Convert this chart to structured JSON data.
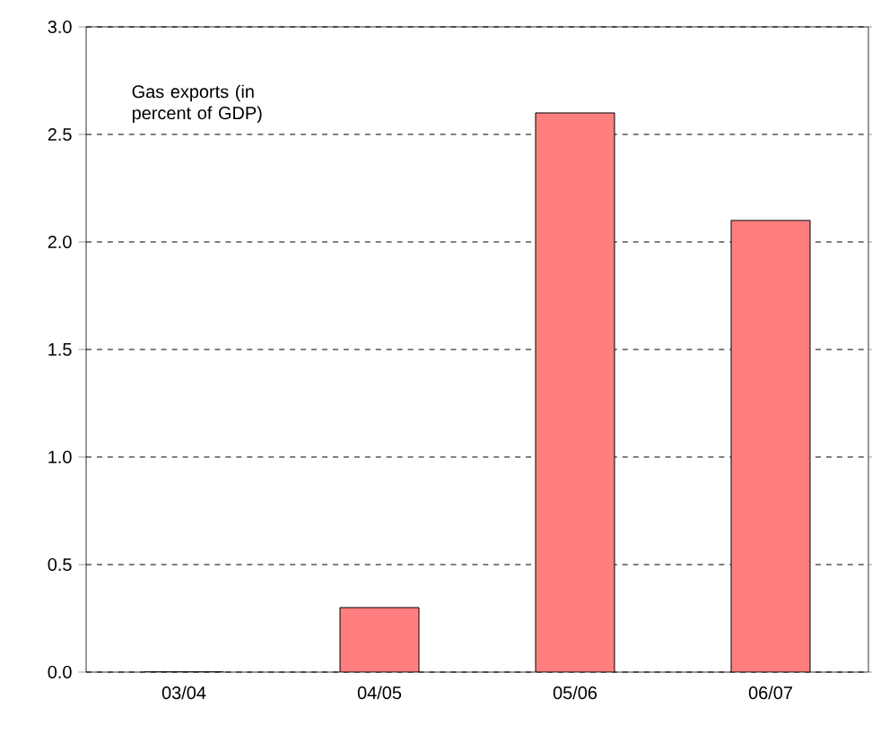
{
  "chart_data": {
    "type": "bar",
    "annotations": [
      "Gas exports (in percent of GDP)"
    ],
    "categories": [
      "03/04",
      "04/05",
      "05/06",
      "06/07"
    ],
    "values": [
      0,
      0.3,
      2.6,
      2.1
    ],
    "color": "#ff7f7f",
    "ylim": [
      0,
      3.0
    ],
    "yticks": [
      {
        "value": 0,
        "label": "0.0"
      },
      {
        "value": 0.5,
        "label": "0.5"
      },
      {
        "value": 1,
        "label": "1.0"
      },
      {
        "value": 1.5,
        "label": "1.5"
      },
      {
        "value": 2,
        "label": "2.0"
      },
      {
        "value": 2.5,
        "label": "2.5"
      },
      {
        "value": 3,
        "label": "3.0"
      }
    ],
    "grid": "y"
  }
}
